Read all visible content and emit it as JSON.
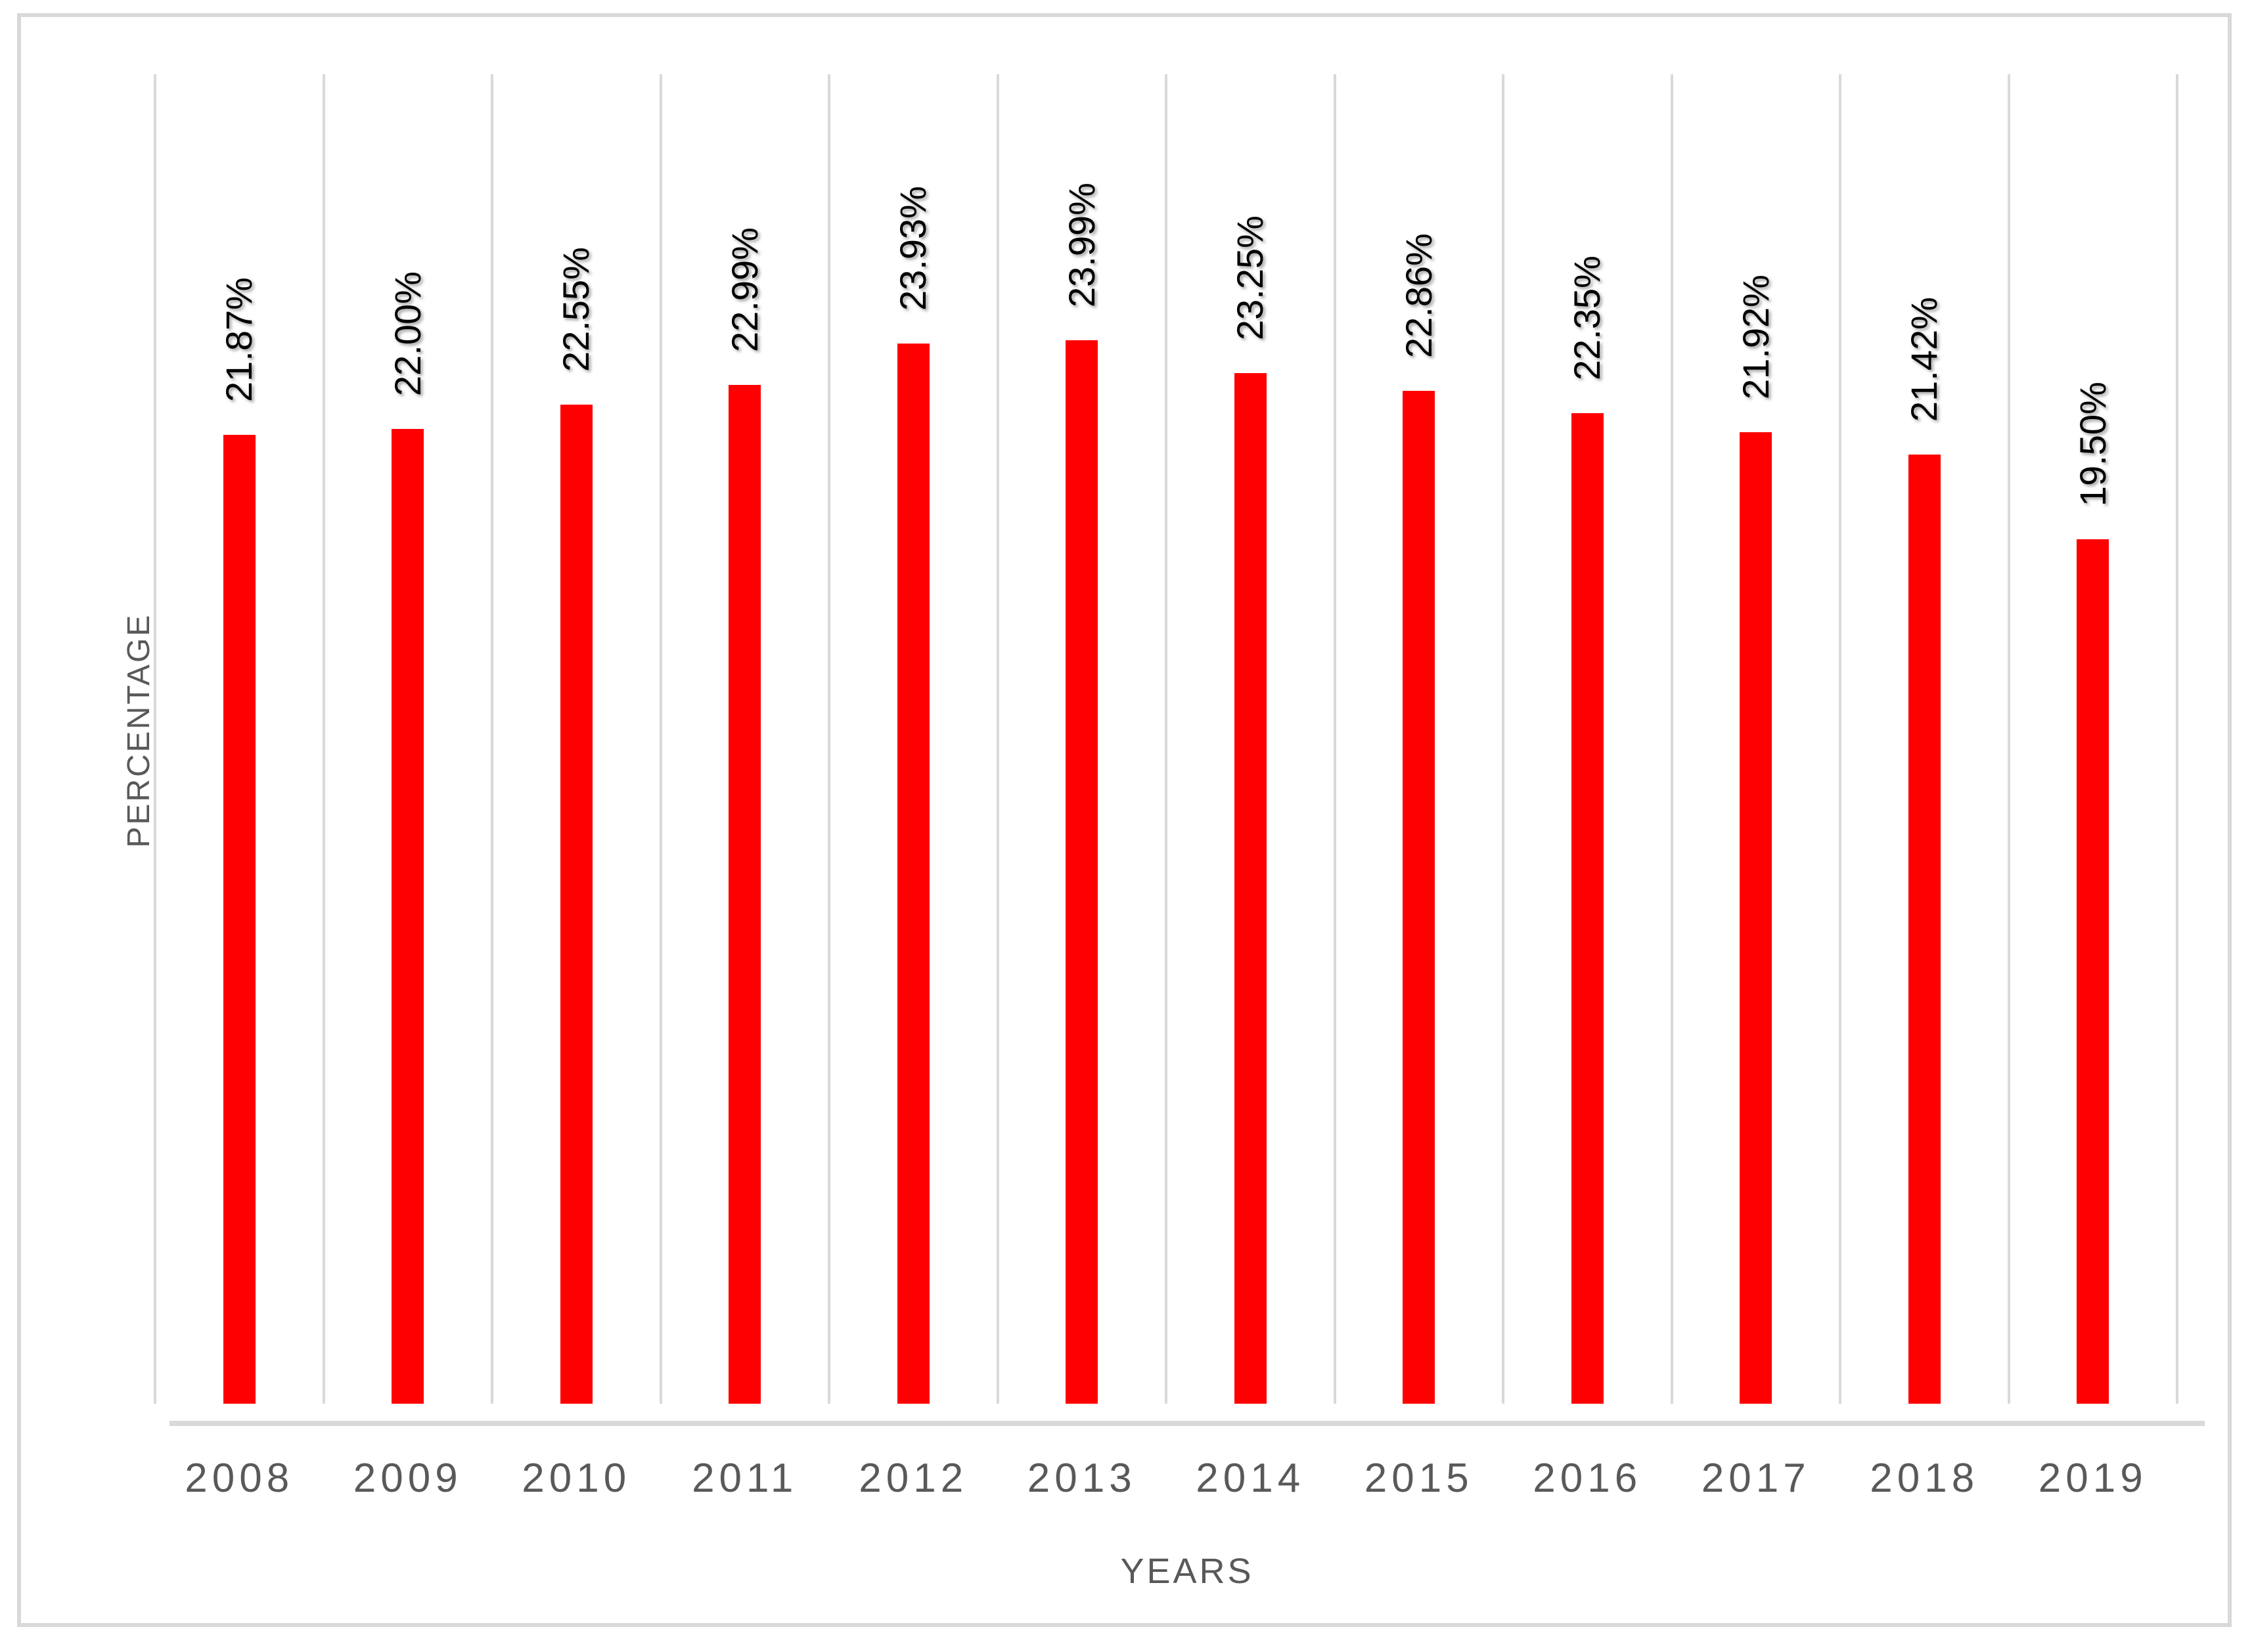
{
  "chart_data": {
    "type": "bar",
    "title": "",
    "categories": [
      "2008",
      "2009",
      "2010",
      "2011",
      "2012",
      "2013",
      "2014",
      "2015",
      "2016",
      "2017",
      "2018",
      "2019"
    ],
    "values": [
      21.87,
      22.0,
      22.55,
      22.99,
      23.93,
      23.99,
      23.25,
      22.86,
      22.35,
      21.92,
      21.42,
      19.5
    ],
    "data_labels": [
      "21.87%",
      "22.00%",
      "22.55%",
      "22.99%",
      "23.93%",
      "23.99%",
      "23.25%",
      "22.86%",
      "22.35%",
      "21.92%",
      "21.42%",
      "19.50%"
    ],
    "xlabel": "YEARS",
    "ylabel": "PERCENTAGE",
    "ylim": [
      0,
      30
    ],
    "y_ticks_visible": false,
    "grid": "vertical category boundaries only",
    "legend": "none",
    "data_label_rotation_degrees": -90,
    "bar_color": "#ff0000",
    "gridline_color": "#d9d9d9",
    "frame_border_color": "#d9d9d9",
    "axis_text_color": "#595959",
    "data_label_color": "#000000"
  }
}
